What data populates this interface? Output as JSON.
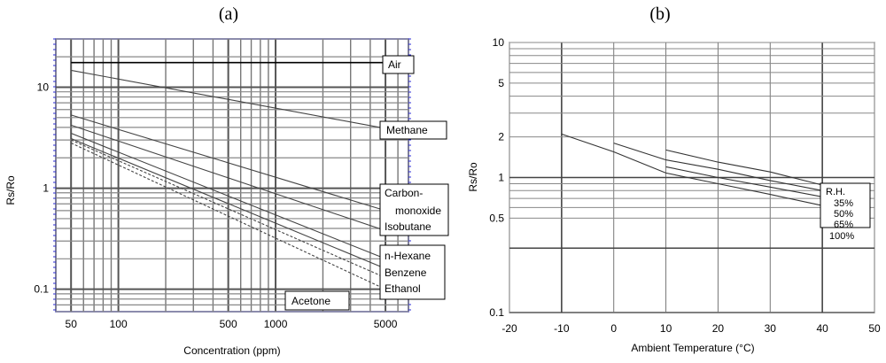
{
  "chart_data": [
    {
      "type": "line",
      "panel_label": "(a)",
      "xscale": "log",
      "yscale": "log",
      "xlim": [
        40,
        7000
      ],
      "ylim": [
        0.06,
        30
      ],
      "xlabel": "Concentration (ppm)",
      "ylabel": "Rs/Ro",
      "xticks": [
        {
          "v": 50,
          "label": "50"
        },
        {
          "v": 100,
          "label": "100"
        },
        {
          "v": 500,
          "label": "500"
        },
        {
          "v": 1000,
          "label": "1000"
        },
        {
          "v": 5000,
          "label": "5000"
        }
      ],
      "yticks": [
        {
          "v": 0.1,
          "label": "0.1"
        },
        {
          "v": 1,
          "label": "1"
        },
        {
          "v": 10,
          "label": "10"
        }
      ],
      "grid": true,
      "series": [
        {
          "name": "Air",
          "points": [
            [
              50,
              17.5
            ],
            [
              5000,
              17.5
            ]
          ]
        },
        {
          "name": "Methane",
          "points": [
            [
              50,
              14.7
            ],
            [
              5000,
              3.9
            ]
          ]
        },
        {
          "name": "Carbon-monoxide",
          "points": [
            [
              50,
              5.3
            ],
            [
              5000,
              0.6
            ]
          ]
        },
        {
          "name": "Isobutane",
          "points": [
            [
              50,
              4.2
            ],
            [
              5000,
              0.38
            ]
          ]
        },
        {
          "name": "n-Hexane",
          "points": [
            [
              50,
              3.5
            ],
            [
              5000,
              0.2
            ]
          ]
        },
        {
          "name": "Benzene",
          "points": [
            [
              50,
              3.1
            ],
            [
              5000,
              0.16
            ]
          ]
        },
        {
          "name": "Ethanol",
          "points": [
            [
              50,
              3.0
            ],
            [
              5000,
              0.13
            ]
          ]
        },
        {
          "name": "Acetone",
          "points": [
            [
              50,
              2.8
            ],
            [
              5000,
              0.1
            ]
          ]
        }
      ],
      "labels": {
        "air": "Air",
        "methane": "Methane",
        "co_1": "Carbon-",
        "co_2": "monoxide",
        "isobutane": "Isobutane",
        "hexane": "n-Hexane",
        "benzene": "Benzene",
        "ethanol": "Ethanol",
        "acetone": "Acetone"
      }
    },
    {
      "type": "line",
      "panel_label": "(b)",
      "xscale": "linear",
      "yscale": "log",
      "xlim": [
        -20,
        50
      ],
      "ylim": [
        0.1,
        10
      ],
      "xlabel": "Ambient Temperature (°C)",
      "ylabel": "Rs/Ro",
      "xticks": [
        {
          "v": -20,
          "label": "-20"
        },
        {
          "v": -10,
          "label": "-10"
        },
        {
          "v": 0,
          "label": "0"
        },
        {
          "v": 10,
          "label": "10"
        },
        {
          "v": 20,
          "label": "20"
        },
        {
          "v": 30,
          "label": "30"
        },
        {
          "v": 40,
          "label": "40"
        },
        {
          "v": 50,
          "label": "50"
        }
      ],
      "yticks": [
        {
          "v": 0.1,
          "label": "0.1"
        },
        {
          "v": 0.5,
          "label": "0.5"
        },
        {
          "v": 1,
          "label": "1"
        },
        {
          "v": 2,
          "label": "2"
        },
        {
          "v": 5,
          "label": "5"
        },
        {
          "v": 10,
          "label": "10"
        }
      ],
      "grid": true,
      "legend_title": "R.H.",
      "series": [
        {
          "name": "35%",
          "points": [
            [
              10,
              1.6
            ],
            [
              20,
              1.3
            ],
            [
              30,
              1.1
            ],
            [
              40,
              0.88
            ]
          ]
        },
        {
          "name": "50%",
          "points": [
            [
              0,
              1.8
            ],
            [
              10,
              1.35
            ],
            [
              20,
              1.15
            ],
            [
              30,
              0.95
            ],
            [
              40,
              0.8
            ]
          ]
        },
        {
          "name": "65%",
          "points": [
            [
              10,
              1.2
            ],
            [
              20,
              1.0
            ],
            [
              30,
              0.85
            ],
            [
              40,
              0.72
            ]
          ]
        },
        {
          "name": "100%",
          "points": [
            [
              -10,
              2.1
            ],
            [
              0,
              1.55
            ],
            [
              10,
              1.08
            ],
            [
              20,
              0.9
            ],
            [
              30,
              0.75
            ],
            [
              40,
              0.62
            ]
          ]
        }
      ]
    }
  ]
}
